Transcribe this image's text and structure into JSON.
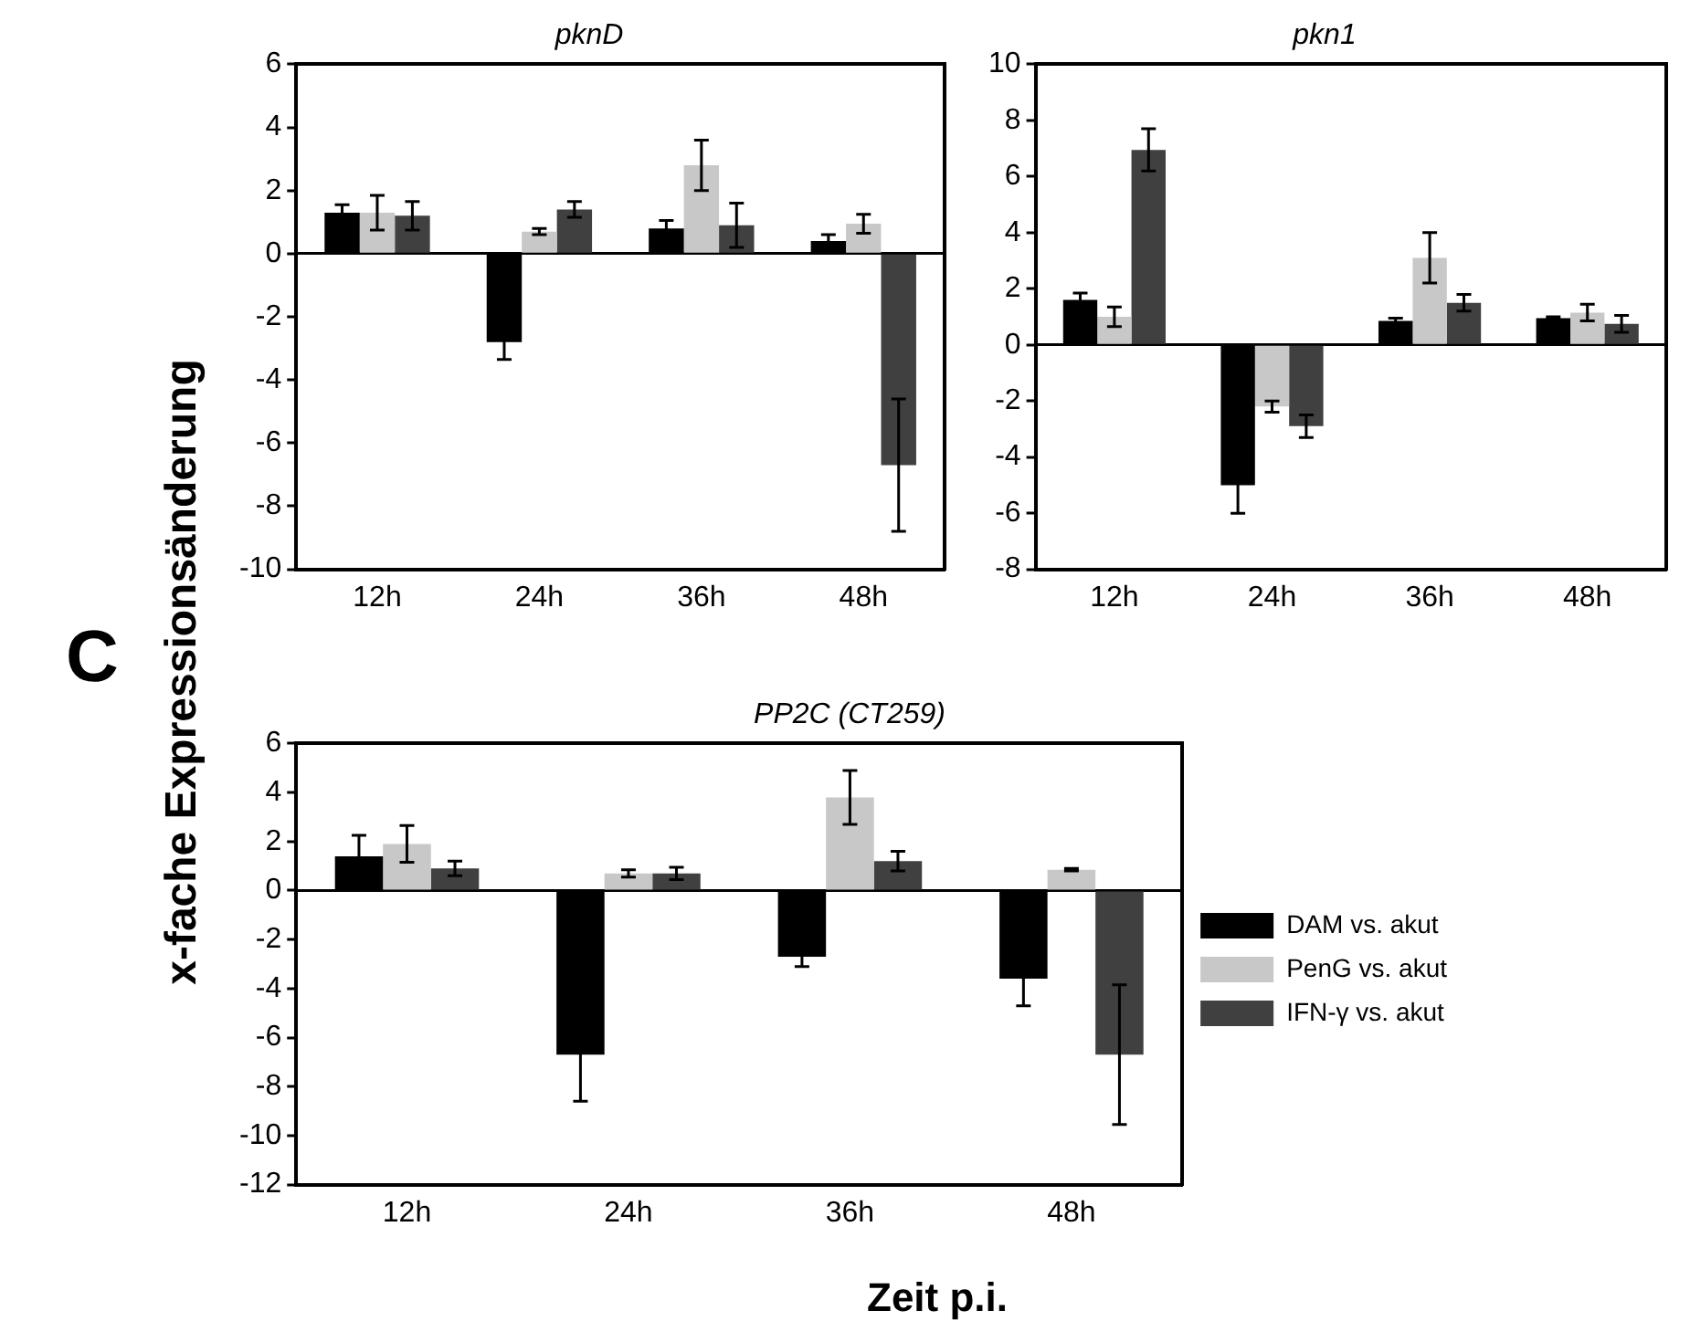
{
  "chart_data": [
    {
      "type": "bar",
      "title": "pknD",
      "categories": [
        "12h",
        "24h",
        "36h",
        "48h"
      ],
      "ylim": [
        -10,
        6
      ],
      "yticks": [
        -10,
        -8,
        -6,
        -4,
        -2,
        0,
        2,
        4,
        6
      ],
      "legend": false,
      "series": [
        {
          "color": "#000000",
          "values": [
            1.3,
            -2.8,
            0.8,
            0.4
          ],
          "errors": [
            0.25,
            0.55,
            0.25,
            0.2
          ]
        },
        {
          "color": "#c8c8c8",
          "values": [
            1.3,
            0.7,
            2.8,
            0.95
          ],
          "errors": [
            0.55,
            0.1,
            0.8,
            0.3
          ]
        },
        {
          "color": "#404040",
          "values": [
            1.2,
            1.4,
            0.9,
            -6.7
          ],
          "errors": [
            0.45,
            0.25,
            0.7,
            2.1
          ]
        }
      ]
    },
    {
      "type": "bar",
      "title": "pkn1",
      "categories": [
        "12h",
        "24h",
        "36h",
        "48h"
      ],
      "ylim": [
        -8,
        10
      ],
      "yticks": [
        -8,
        -6,
        -4,
        -2,
        0,
        2,
        4,
        6,
        8,
        10
      ],
      "legend": false,
      "series": [
        {
          "color": "#000000",
          "values": [
            1.6,
            -5.0,
            0.85,
            0.95
          ],
          "errors": [
            0.25,
            1.0,
            0.1,
            0.05
          ]
        },
        {
          "color": "#c8c8c8",
          "values": [
            1.0,
            -2.2,
            3.1,
            1.15
          ],
          "errors": [
            0.35,
            0.2,
            0.9,
            0.3
          ]
        },
        {
          "color": "#404040",
          "values": [
            6.95,
            -2.9,
            1.5,
            0.75
          ],
          "errors": [
            0.75,
            0.4,
            0.3,
            0.3
          ]
        }
      ]
    },
    {
      "type": "bar",
      "title": "PP2C (CT259)",
      "xlabel": "Zeit p.i.",
      "ylabel": "x-fache Expressionsänderung",
      "annotations": [
        "C"
      ],
      "categories": [
        "12h",
        "24h",
        "36h",
        "48h"
      ],
      "ylim": [
        -12,
        6
      ],
      "yticks": [
        -12,
        -10,
        -8,
        -6,
        -4,
        -2,
        0,
        2,
        4,
        6
      ],
      "legend": "right",
      "series": [
        {
          "name": "DAM vs. akut",
          "color": "#000000",
          "values": [
            1.4,
            -6.7,
            -2.7,
            -3.6
          ],
          "errors": [
            0.85,
            1.9,
            0.4,
            1.1
          ]
        },
        {
          "name": "PenG vs. akut",
          "color": "#c8c8c8",
          "values": [
            1.9,
            0.7,
            3.8,
            0.85
          ],
          "errors": [
            0.75,
            0.15,
            1.1,
            0.05
          ]
        },
        {
          "name": "IFN-γ vs. akut",
          "color": "#404040",
          "values": [
            0.9,
            0.7,
            1.2,
            -6.7
          ],
          "errors": [
            0.3,
            0.25,
            0.4,
            2.85
          ]
        }
      ]
    }
  ]
}
